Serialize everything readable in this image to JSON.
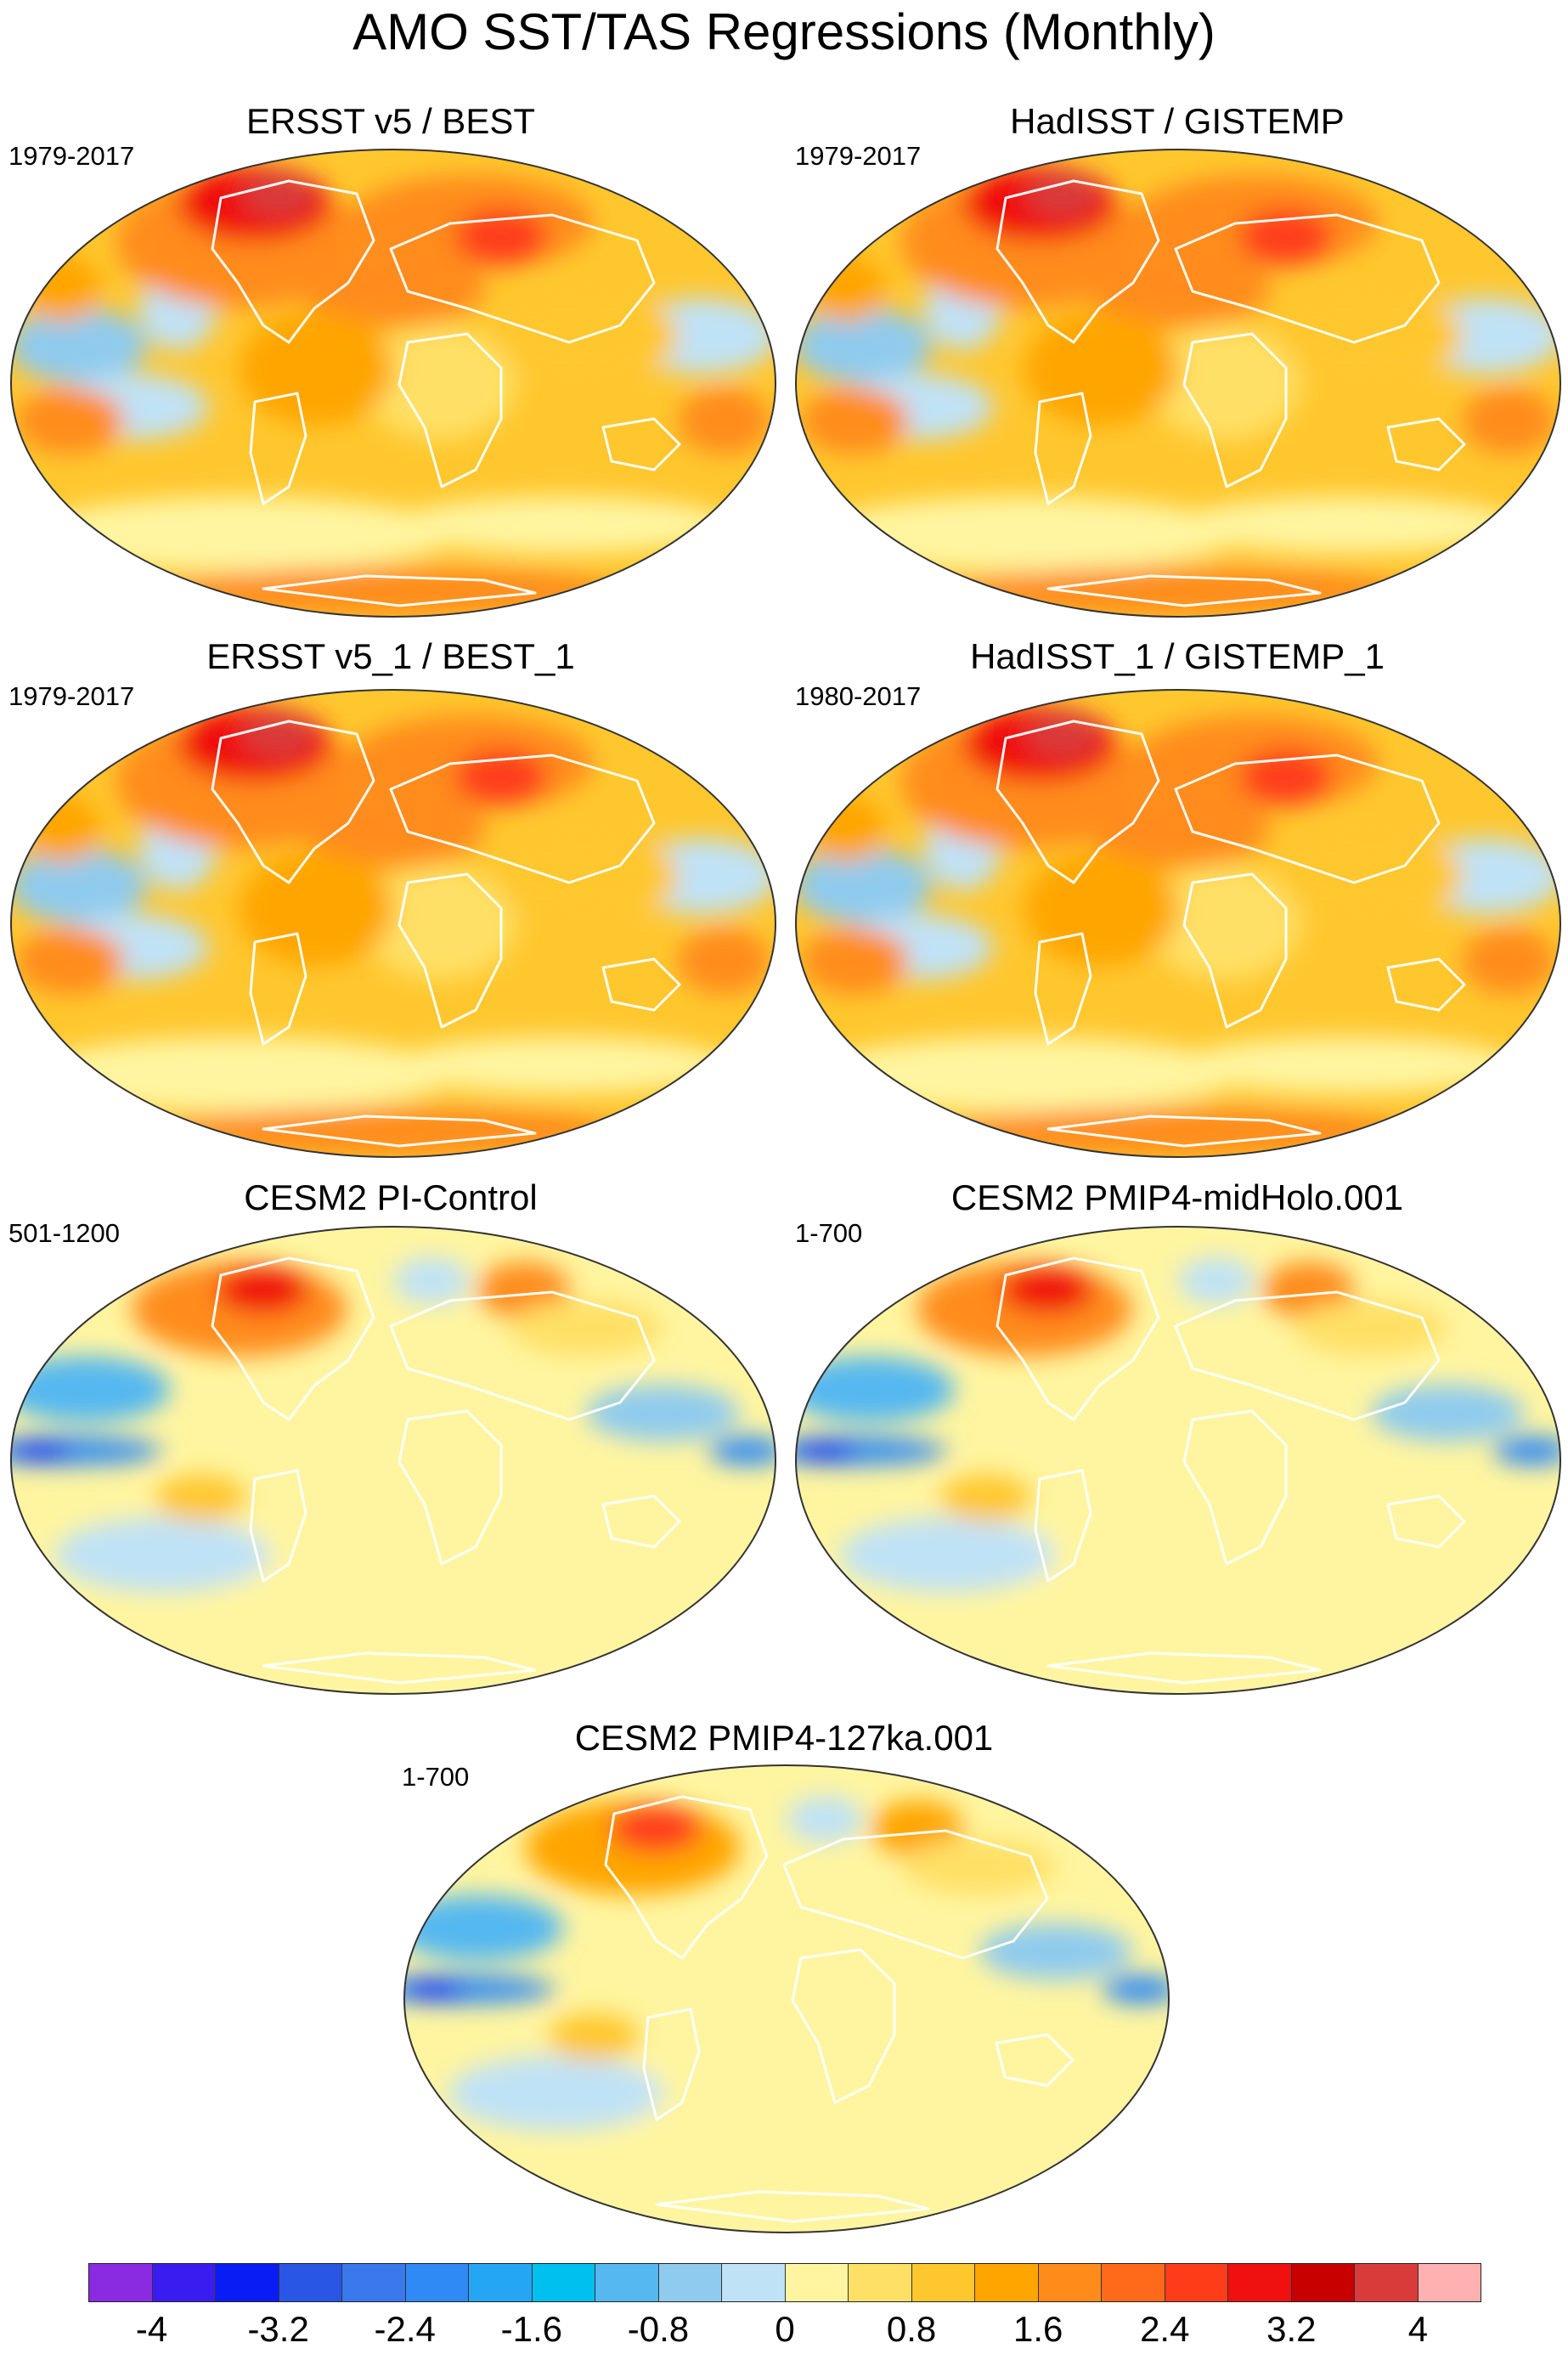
{
  "figure": {
    "title": "AMO SST/TAS Regressions (Monthly)"
  },
  "panels": [
    {
      "title": "ERSST v5 / BEST",
      "period": "1979-2017",
      "pattern": "observation"
    },
    {
      "title": "HadISST / GISTEMP",
      "period": "1979-2017",
      "pattern": "observation"
    },
    {
      "title": "ERSST v5_1 / BEST_1",
      "period": "1979-2017",
      "pattern": "observation"
    },
    {
      "title": "HadISST_1 / GISTEMP_1",
      "period": "1980-2017",
      "pattern": "observation"
    },
    {
      "title": "CESM2 PI-Control",
      "period": "501-1200",
      "pattern": "model"
    },
    {
      "title": "CESM2 PMIP4-midHolo.001",
      "period": "1-700",
      "pattern": "model"
    },
    {
      "title": "CESM2 PMIP4-127ka.001",
      "period": "1-700",
      "pattern": "model_weak"
    }
  ],
  "colorbar": {
    "labels": [
      "-4",
      "-3.2",
      "-2.4",
      "-1.6",
      "-0.8",
      "0",
      "0.8",
      "1.6",
      "2.4",
      "3.2",
      "4"
    ],
    "colors": [
      "#8a2be2",
      "#3b1cf0",
      "#0a1cf5",
      "#2a56e6",
      "#3a78ee",
      "#2f8af5",
      "#24a6f5",
      "#00c0f0",
      "#55b8f0",
      "#8fcbee",
      "#bfe2f6",
      "#fff5a0",
      "#ffe066",
      "#ffc72e",
      "#ffa500",
      "#ff8c1a",
      "#ff6a1a",
      "#ff3c1a",
      "#f01010",
      "#c80000",
      "#d93a3a",
      "#ffb0b0"
    ]
  },
  "chart_data": {
    "type": "heatmap",
    "title": "AMO SST/TAS Regressions (Monthly)",
    "colorbar_ticks": [
      -4,
      -3.2,
      -2.4,
      -1.6,
      -0.8,
      0,
      0.8,
      1.6,
      2.4,
      3.2,
      4
    ],
    "contour_levels": [
      -4.4,
      -4,
      -3.6,
      -3.2,
      -2.8,
      -2.4,
      -2,
      -1.6,
      -1.2,
      -0.8,
      -0.4,
      0,
      0.4,
      0.8,
      1.2,
      1.6,
      2,
      2.4,
      2.8,
      3.2,
      3.6,
      4,
      4.4
    ],
    "panels": [
      "ERSST v5 / BEST",
      "HadISST / GISTEMP",
      "ERSST v5_1 / BEST_1",
      "HadISST_1 / GISTEMP_1",
      "CESM2 PI-Control",
      "CESM2 PMIP4-midHolo.001",
      "CESM2 PMIP4-127ka.001"
    ]
  }
}
